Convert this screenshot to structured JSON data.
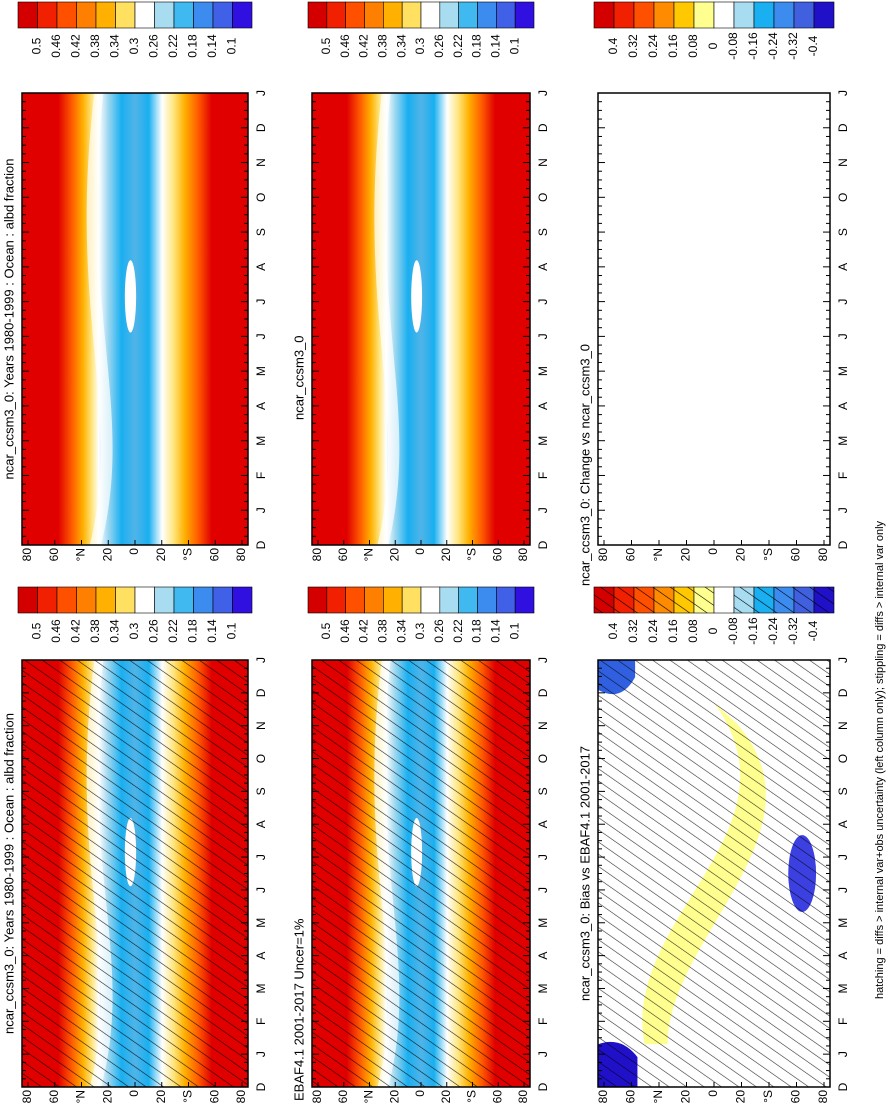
{
  "panels": [
    {
      "title": "ncar_ccsm3_0: Years 1980-1999 : Ocean : albd fraction",
      "colorbar": [
        0.5,
        0.46,
        0.42,
        0.38,
        0.34,
        0.3,
        0.26,
        0.22,
        0.18,
        0.14,
        0.1
      ]
    },
    {
      "title": "ncar_ccsm3_0: Years 1980-1999 : Ocean : albd fraction",
      "colorbar": [
        0.5,
        0.46,
        0.42,
        0.38,
        0.34,
        0.3,
        0.26,
        0.22,
        0.18,
        0.14,
        0.1
      ]
    },
    {
      "title": "EBAF4.1 2001-2017 Uncer=1%",
      "colorbar": [
        0.5,
        0.46,
        0.42,
        0.38,
        0.34,
        0.3,
        0.26,
        0.22,
        0.18,
        0.14,
        0.1
      ]
    },
    {
      "title": "ncar_ccsm3_0",
      "colorbar": [
        0.5,
        0.46,
        0.42,
        0.38,
        0.34,
        0.3,
        0.26,
        0.22,
        0.18,
        0.14,
        0.1
      ]
    },
    {
      "title": "ncar_ccsm3_0: Bias vs EBAF4.1 2001-2017",
      "colorbar": [
        0.4,
        0.32,
        0.24,
        0.16,
        0.08,
        0,
        -0.08,
        -0.16,
        -0.24,
        -0.32,
        -0.4
      ]
    },
    {
      "title": "ncar_ccsm3_0: Change vs ncar_ccsm3_0",
      "colorbar": [
        0.4,
        0.32,
        0.24,
        0.16,
        0.08,
        0,
        -0.08,
        -0.16,
        -0.24,
        -0.32,
        -0.4
      ]
    }
  ],
  "time_labels": [
    "D",
    "J",
    "F",
    "M",
    "A",
    "M",
    "J",
    "J",
    "A",
    "S",
    "O",
    "N",
    "D",
    "J"
  ],
  "lat_labels": [
    80,
    60,
    "°N",
    20,
    0,
    20,
    "°S",
    60,
    80
  ],
  "footer": "hatching = diffs > internal var+obs uncertainty (left column only); stippling = diffs > internal var only"
}
